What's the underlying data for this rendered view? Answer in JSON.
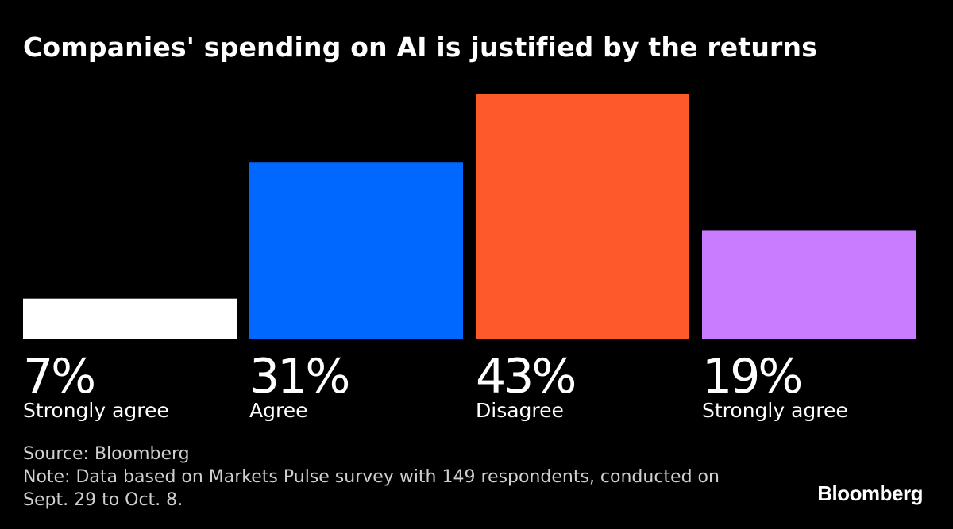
{
  "header": {
    "title": "Companies' spending on AI is justified by the returns"
  },
  "chart_data": {
    "type": "bar",
    "title": "Companies' spending on AI is justified by the returns",
    "categories": [
      "Strongly agree",
      "Agree",
      "Disagree",
      "Strongly agree"
    ],
    "values": [
      7,
      31,
      43,
      19
    ],
    "value_labels": [
      "7%",
      "31%",
      "43%",
      "19%"
    ],
    "colors": [
      "#ffffff",
      "#0068ff",
      "#fd5a2b",
      "#c97cff"
    ],
    "unit": "%",
    "ylim": [
      0,
      43
    ],
    "xlabel": "",
    "ylabel": "",
    "grid": false,
    "legend": "none"
  },
  "footer": {
    "source": "Source: Bloomberg",
    "note": "Note: Data based on Markets Pulse survey with 149 respondents, conducted on Sept. 29 to Oct. 8.",
    "brand": "Bloomberg"
  }
}
